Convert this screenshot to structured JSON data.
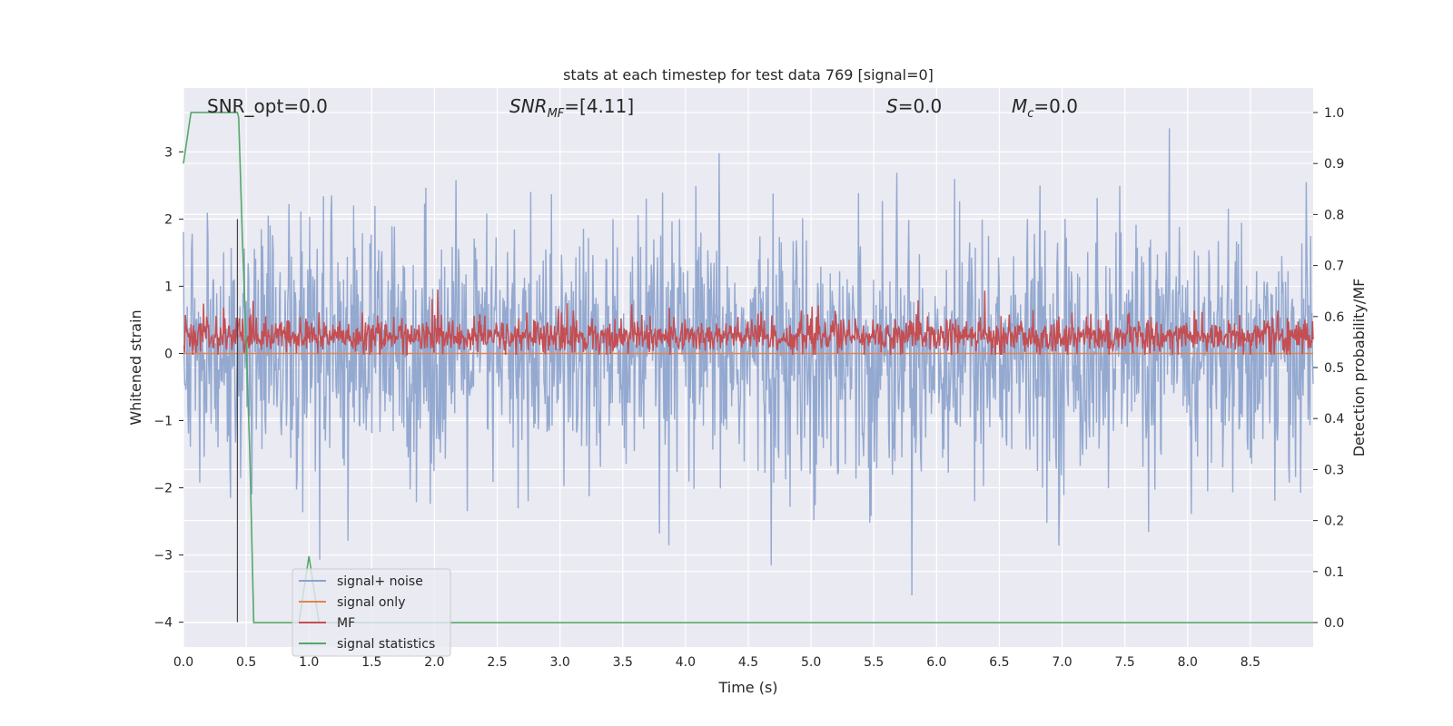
{
  "chart_data": {
    "type": "line",
    "title": "stats at each timestep for test data 769 [signal=0]",
    "xlabel": "Time (s)",
    "ylabel": "Whitened strain",
    "y2label": "Detection probability/MF",
    "xlim": [
      0.0,
      9.0
    ],
    "ylim": [
      -4.37,
      3.95
    ],
    "y2lim": [
      -0.048,
      1.048
    ],
    "xticks": [
      0.0,
      0.5,
      1.0,
      1.5,
      2.0,
      2.5,
      3.0,
      3.5,
      4.0,
      4.5,
      5.0,
      5.5,
      6.0,
      6.5,
      7.0,
      7.5,
      8.0,
      8.5
    ],
    "xtick_labels": [
      "0.0",
      "0.5",
      "1.0",
      "1.5",
      "2.0",
      "2.5",
      "3.0",
      "3.5",
      "4.0",
      "4.5",
      "5.0",
      "5.5",
      "6.0",
      "6.5",
      "7.0",
      "7.5",
      "8.0",
      "8.5"
    ],
    "yticks": [
      3,
      2,
      1,
      0,
      -1,
      -2,
      -3,
      -4
    ],
    "ytick_labels": [
      "3",
      "2",
      "1",
      "0",
      "−1",
      "−2",
      "−3",
      "−4"
    ],
    "y2ticks": [
      1.0,
      0.9,
      0.8,
      0.7,
      0.6,
      0.5,
      0.4,
      0.3,
      0.2,
      0.1,
      0.0
    ],
    "y2tick_labels": [
      "1.0",
      "0.9",
      "0.8",
      "0.7",
      "0.6",
      "0.5",
      "0.4",
      "0.3",
      "0.2",
      "0.1",
      "0.0"
    ],
    "grid": true,
    "legend_position": "lower-left",
    "annotations": [
      {
        "id": "snr-opt",
        "text": "SNR_opt=0.0"
      },
      {
        "id": "snr-mf",
        "text": "SNR_MF=[4.11]"
      },
      {
        "id": "s-stat",
        "text": "S=0.0"
      },
      {
        "id": "mc",
        "text": "M_c=0.0"
      }
    ],
    "series": [
      {
        "name": "signal+ noise",
        "axis": "left",
        "color": "#8ba2cc",
        "kind": "noise",
        "n": 1800,
        "x_range": [
          0.0,
          9.0
        ],
        "approx_std": 0.95,
        "min": -3.6,
        "max": 3.35
      },
      {
        "name": "signal only",
        "axis": "left",
        "color": "#dd8452",
        "x": [
          0.0,
          9.0
        ],
        "y": [
          0.0,
          0.0
        ]
      },
      {
        "name": "MF",
        "axis": "left",
        "color": "#c44e52",
        "kind": "noise",
        "n": 1800,
        "x_range": [
          0.0,
          9.0
        ],
        "approx_mean": 0.25,
        "min": -0.02,
        "max": 0.95
      },
      {
        "name": "signal statistics",
        "axis": "right",
        "color": "#55a868",
        "x": [
          0.0,
          0.06,
          0.43,
          0.44,
          0.47,
          0.5,
          0.53,
          0.56,
          9.0
        ],
        "y": [
          0.9,
          1.0,
          1.0,
          0.99,
          0.75,
          0.55,
          0.32,
          0.0,
          0.0
        ]
      }
    ],
    "extra_marks": [
      {
        "name": "inset-peak",
        "axis": "right",
        "x": [
          0.92,
          1.0,
          1.08
        ],
        "y": [
          0.0,
          0.13,
          0.0
        ],
        "color": "#55a868"
      }
    ]
  }
}
